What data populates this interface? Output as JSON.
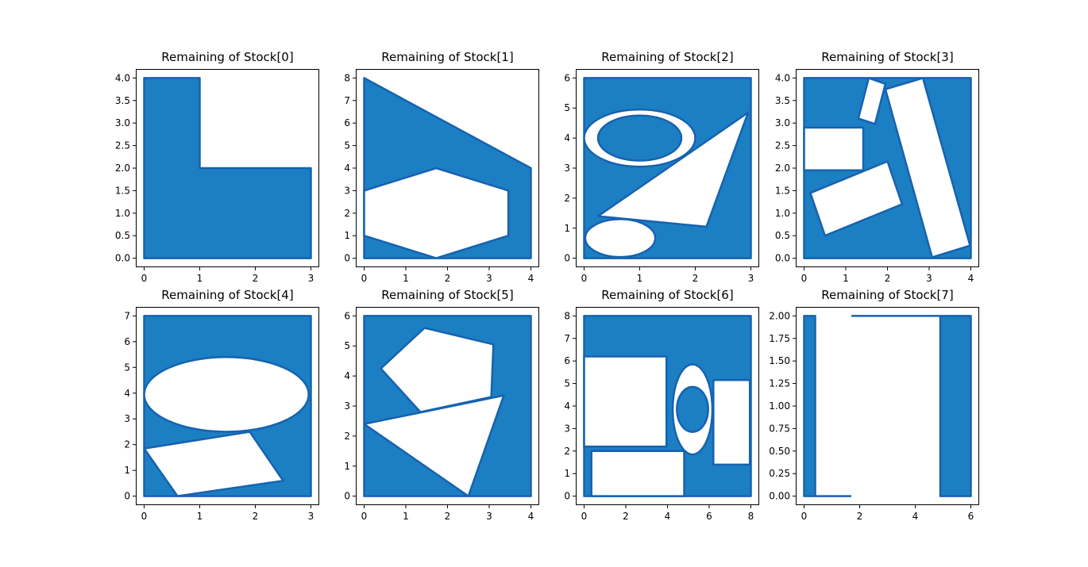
{
  "colors": {
    "fill": "#1c7fc3",
    "edge": "#1662b0",
    "hole": "#ffffff"
  },
  "chart_data": [
    {
      "type": "polygon",
      "title": "Remaining of Stock[0]",
      "xlim": [
        0,
        3
      ],
      "ylim": [
        0,
        4
      ],
      "xticks": [
        "0",
        "1",
        "2",
        "3"
      ],
      "yticks": [
        "0.0",
        "0.5",
        "1.0",
        "1.5",
        "2.0",
        "2.5",
        "3.0",
        "3.5",
        "4.0"
      ],
      "shapes": [
        {
          "fill": true,
          "pts": [
            [
              0,
              0
            ],
            [
              3,
              0
            ],
            [
              3,
              2
            ],
            [
              1,
              2
            ],
            [
              1,
              4
            ],
            [
              0,
              4
            ]
          ]
        }
      ]
    },
    {
      "type": "polygon",
      "title": "Remaining of Stock[1]",
      "xlim": [
        0,
        4
      ],
      "ylim": [
        0,
        8
      ],
      "xticks": [
        "0",
        "1",
        "2",
        "3",
        "4"
      ],
      "yticks": [
        "0",
        "1",
        "2",
        "3",
        "4",
        "5",
        "6",
        "7",
        "8"
      ],
      "shapes": [
        {
          "fill": true,
          "pts": [
            [
              0,
              0
            ],
            [
              4,
              0
            ],
            [
              4,
              4
            ],
            [
              0,
              8
            ]
          ]
        },
        {
          "fill": false,
          "pts": [
            [
              0,
              1
            ],
            [
              0,
              3
            ],
            [
              1.73,
              4
            ],
            [
              3.46,
              3
            ],
            [
              3.46,
              1
            ],
            [
              1.73,
              0
            ]
          ]
        }
      ]
    },
    {
      "type": "polygon",
      "title": "Remaining of Stock[2]",
      "xlim": [
        0,
        3
      ],
      "ylim": [
        0,
        6
      ],
      "xticks": [
        "0",
        "1",
        "2",
        "3"
      ],
      "yticks": [
        "0",
        "1",
        "2",
        "3",
        "4",
        "5",
        "6"
      ],
      "shapes": [
        {
          "fill": true,
          "pts": [
            [
              0,
              0
            ],
            [
              3,
              0
            ],
            [
              3,
              6
            ],
            [
              0,
              6
            ]
          ]
        },
        {
          "fill": false,
          "ellipse": [
            1,
            4,
            1,
            0.95
          ]
        },
        {
          "fill": true,
          "ellipse": [
            1,
            4,
            0.75,
            0.75
          ]
        },
        {
          "fill": false,
          "pts": [
            [
              0.25,
              1.4
            ],
            [
              2.95,
              4.85
            ],
            [
              2.2,
              1.05
            ]
          ]
        },
        {
          "fill": false,
          "ellipse": [
            0.65,
            0.67,
            0.63,
            0.63
          ]
        }
      ]
    },
    {
      "type": "polygon",
      "title": "Remaining of Stock[3]",
      "xlim": [
        0,
        4
      ],
      "ylim": [
        0,
        4
      ],
      "xticks": [
        "0",
        "1",
        "2",
        "3",
        "4"
      ],
      "yticks": [
        "0.0",
        "0.5",
        "1.0",
        "1.5",
        "2.0",
        "2.5",
        "3.0",
        "3.5",
        "4.0"
      ],
      "shapes": [
        {
          "fill": true,
          "pts": [
            [
              0,
              0
            ],
            [
              4,
              0
            ],
            [
              4,
              4
            ],
            [
              0,
              4
            ]
          ]
        },
        {
          "fill": false,
          "pts": [
            [
              0,
              1.95
            ],
            [
              1.42,
              1.95
            ],
            [
              1.42,
              2.9
            ],
            [
              0,
              2.9
            ]
          ]
        },
        {
          "fill": false,
          "pts": [
            [
              0.15,
              1.45
            ],
            [
              2,
              2.15
            ],
            [
              2.35,
              1.2
            ],
            [
              0.5,
              0.5
            ]
          ]
        },
        {
          "fill": false,
          "pts": [
            [
              1.55,
              4
            ],
            [
              1.95,
              3.87
            ],
            [
              1.7,
              2.98
            ],
            [
              1.3,
              3.1
            ]
          ]
        },
        {
          "fill": false,
          "pts": [
            [
              1.95,
              3.75
            ],
            [
              2.85,
              4
            ],
            [
              3.98,
              0.28
            ],
            [
              3.07,
              0.02
            ]
          ]
        }
      ]
    },
    {
      "type": "polygon",
      "title": "Remaining of Stock[4]",
      "xlim": [
        0,
        3
      ],
      "ylim": [
        0,
        7
      ],
      "xticks": [
        "0",
        "1",
        "2",
        "3"
      ],
      "yticks": [
        "0",
        "1",
        "2",
        "3",
        "4",
        "5",
        "6",
        "7"
      ],
      "shapes": [
        {
          "fill": true,
          "pts": [
            [
              0,
              0
            ],
            [
              3,
              0
            ],
            [
              3,
              7
            ],
            [
              0,
              7
            ]
          ]
        },
        {
          "fill": false,
          "ellipse": [
            1.48,
            3.95,
            1.48,
            1.45
          ]
        },
        {
          "fill": false,
          "pts": [
            [
              0,
              1.85
            ],
            [
              1.9,
              2.5
            ],
            [
              2.5,
              0.6
            ],
            [
              0.6,
              0
            ]
          ]
        }
      ]
    },
    {
      "type": "polygon",
      "title": "Remaining of Stock[5]",
      "xlim": [
        0,
        4
      ],
      "ylim": [
        0,
        6
      ],
      "xticks": [
        "0",
        "1",
        "2",
        "3",
        "4"
      ],
      "yticks": [
        "0",
        "1",
        "2",
        "3",
        "4",
        "5",
        "6"
      ],
      "shapes": [
        {
          "fill": true,
          "pts": [
            [
              0,
              0
            ],
            [
              4,
              0
            ],
            [
              4,
              6
            ],
            [
              0,
              6
            ]
          ]
        },
        {
          "fill": false,
          "pts": [
            [
              0.4,
              4.25
            ],
            [
              1.45,
              5.6
            ],
            [
              3.1,
              5.05
            ],
            [
              3.05,
              3.3
            ],
            [
              1.35,
              2.8
            ]
          ]
        },
        {
          "fill": false,
          "pts": [
            [
              0,
              2.4
            ],
            [
              3.35,
              3.35
            ],
            [
              2.5,
              0
            ]
          ]
        }
      ]
    },
    {
      "type": "polygon",
      "title": "Remaining of Stock[6]",
      "xlim": [
        0,
        8
      ],
      "ylim": [
        0,
        8
      ],
      "xticks": [
        "0",
        "2",
        "4",
        "6",
        "8"
      ],
      "yticks": [
        "0",
        "1",
        "2",
        "3",
        "4",
        "5",
        "6",
        "7",
        "8"
      ],
      "shapes": [
        {
          "fill": true,
          "pts": [
            [
              0,
              0
            ],
            [
              8,
              0
            ],
            [
              8,
              8
            ],
            [
              0,
              8
            ]
          ]
        },
        {
          "fill": false,
          "pts": [
            [
              0,
              2.2
            ],
            [
              3.95,
              2.2
            ],
            [
              3.95,
              6.2
            ],
            [
              0,
              6.2
            ]
          ]
        },
        {
          "fill": false,
          "pts": [
            [
              0.35,
              0
            ],
            [
              4.8,
              0
            ],
            [
              4.8,
              2
            ],
            [
              0.35,
              2
            ]
          ]
        },
        {
          "fill": false,
          "ellipse": [
            5.2,
            3.85,
            0.95,
            2
          ]
        },
        {
          "fill": true,
          "ellipse": [
            5.2,
            3.85,
            0.75,
            1
          ]
        },
        {
          "fill": false,
          "pts": [
            [
              6.2,
              1.4
            ],
            [
              7.95,
              1.4
            ],
            [
              7.95,
              5.15
            ],
            [
              6.2,
              5.15
            ]
          ]
        }
      ]
    },
    {
      "type": "polygon",
      "title": "Remaining of Stock[7]",
      "xlim": [
        0,
        6
      ],
      "ylim": [
        0,
        2
      ],
      "xticks": [
        "0",
        "2",
        "4",
        "6"
      ],
      "yticks": [
        "0.00",
        "0.25",
        "0.50",
        "0.75",
        "1.00",
        "1.25",
        "1.50",
        "1.75",
        "2.00"
      ],
      "shapes": [
        {
          "fill": true,
          "pts": [
            [
              0,
              0
            ],
            [
              0.4,
              0
            ],
            [
              0.4,
              2
            ],
            [
              0,
              2
            ]
          ]
        },
        {
          "fill": true,
          "pts": [
            [
              4.9,
              0
            ],
            [
              6,
              0
            ],
            [
              6,
              2
            ],
            [
              4.9,
              2
            ]
          ]
        },
        {
          "fill": false,
          "open": true,
          "pts": [
            [
              0.4,
              0
            ],
            [
              1.7,
              0
            ]
          ]
        },
        {
          "fill": false,
          "open": true,
          "pts": [
            [
              1.7,
              2
            ],
            [
              4.9,
              2
            ]
          ]
        }
      ]
    }
  ]
}
